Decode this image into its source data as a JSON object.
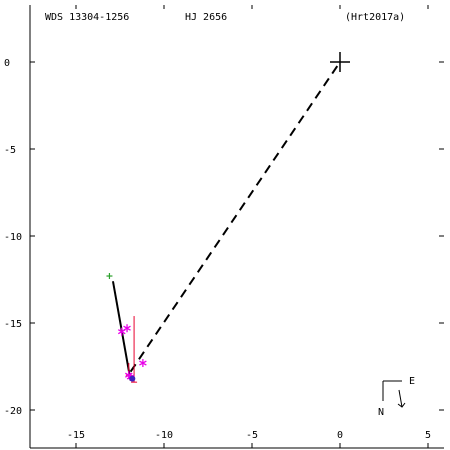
{
  "header": {
    "left": "WDS 13304-1256",
    "center": "HJ 2656",
    "right": "(Hrt2017a)"
  },
  "compass": {
    "east": "E",
    "north": "N"
  },
  "colors": {
    "axis": "#000000",
    "plus": "#2ca02c",
    "obs_asterisk": "#e800e8",
    "error_bar": "#e8002e",
    "latest": "#4020c0"
  },
  "chart_data": {
    "type": "scatter",
    "title": "",
    "xlabel": "",
    "ylabel": "",
    "xlim": [
      -18.5,
      6
    ],
    "ylim": [
      -21.5,
      2.5
    ],
    "x_ticks": [
      -15,
      -10,
      -5,
      0,
      5
    ],
    "y_ticks": [
      0,
      -5,
      -10,
      -15,
      -20
    ],
    "x_tick_labels": [
      "-15",
      "-10",
      "-5",
      "0",
      "5"
    ],
    "y_tick_labels": [
      "0",
      "-5",
      "-10",
      "-15",
      "-20"
    ],
    "primary": {
      "x": 0,
      "y": 0,
      "marker": "large-plus"
    },
    "first_observation": {
      "x": -13.1,
      "y": -12.3,
      "marker": "plus"
    },
    "path_solid": [
      {
        "x": -12.9,
        "y": -12.6
      },
      {
        "x": -11.9,
        "y": -18.3
      }
    ],
    "path_dashed": [
      {
        "x": -11.9,
        "y": -17.8
      },
      {
        "x": 0,
        "y": 0
      }
    ],
    "observations": [
      {
        "x": -12.4,
        "y": -15.5
      },
      {
        "x": -12.1,
        "y": -15.3
      },
      {
        "x": -11.2,
        "y": -17.3
      },
      {
        "x": -12.0,
        "y": -18.0
      },
      {
        "x": -11.9,
        "y": -18.1
      }
    ],
    "error_bars": [
      {
        "x": -11.7,
        "y1": -14.6,
        "y2": -18.4
      },
      {
        "x": -12.0,
        "y1": -17.3,
        "y2": -18.0
      }
    ],
    "latest_point": {
      "x": -11.8,
      "y": -18.2
    }
  }
}
